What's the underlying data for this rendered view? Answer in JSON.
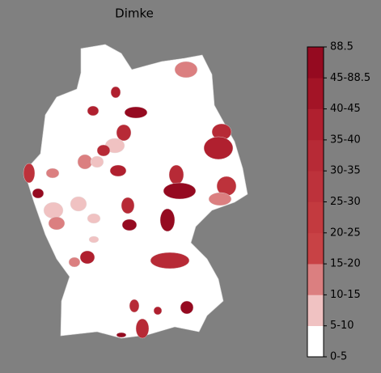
{
  "title": "Dimke",
  "colorbar": {
    "labels": [
      "0-5",
      "5-10",
      "10-15",
      "15-20",
      "20-25",
      "25-30",
      "30-35",
      "35-40",
      "40-45",
      "45-88.5",
      "88.5"
    ],
    "colors": [
      "#ffffff",
      "#f0c2c2",
      "#db7f80",
      "#c84245",
      "#c33a3f",
      "#bd323b",
      "#b72a36",
      "#b0202f",
      "#a31426",
      "#950a20"
    ]
  }
}
